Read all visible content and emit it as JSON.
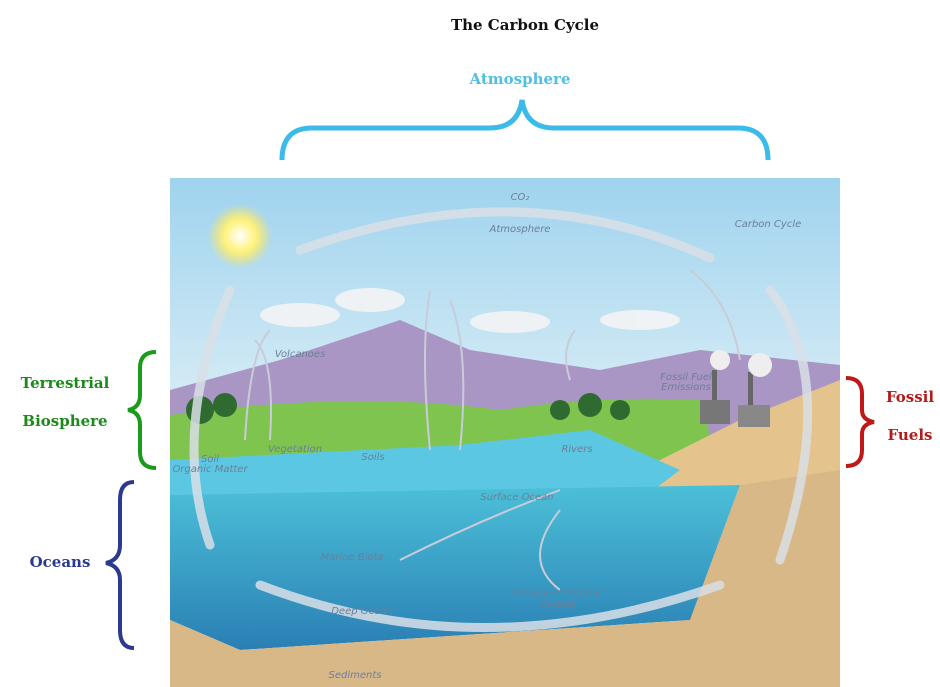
{
  "title": "The Carbon Cycle",
  "regions": {
    "atmosphere": "Atmosphere",
    "terrestrial_biosphere": [
      "Terrestrial",
      "Biosphere"
    ],
    "oceans": "Oceans",
    "fossil_fuels": [
      "Fossil",
      "Fuels"
    ]
  },
  "illustration": {
    "co2": "CO₂",
    "atmosphere": "Atmosphere",
    "heading": "Carbon Cycle",
    "volcanoes": "Volcanoes",
    "soil": [
      "Soil",
      "Organic Matter"
    ],
    "vegetation": "Vegetation",
    "soils": "Soils",
    "emissions": [
      "Fossil Fuel",
      "Emissions"
    ],
    "rivers": "Rivers",
    "surface_ocean": "Surface Ocean",
    "marine_biota": "Marine Biota",
    "doc": [
      "Dissolved Organic",
      "Carbon"
    ],
    "deep_ocean": "Deep Ocean",
    "sediments": "Sediments"
  }
}
